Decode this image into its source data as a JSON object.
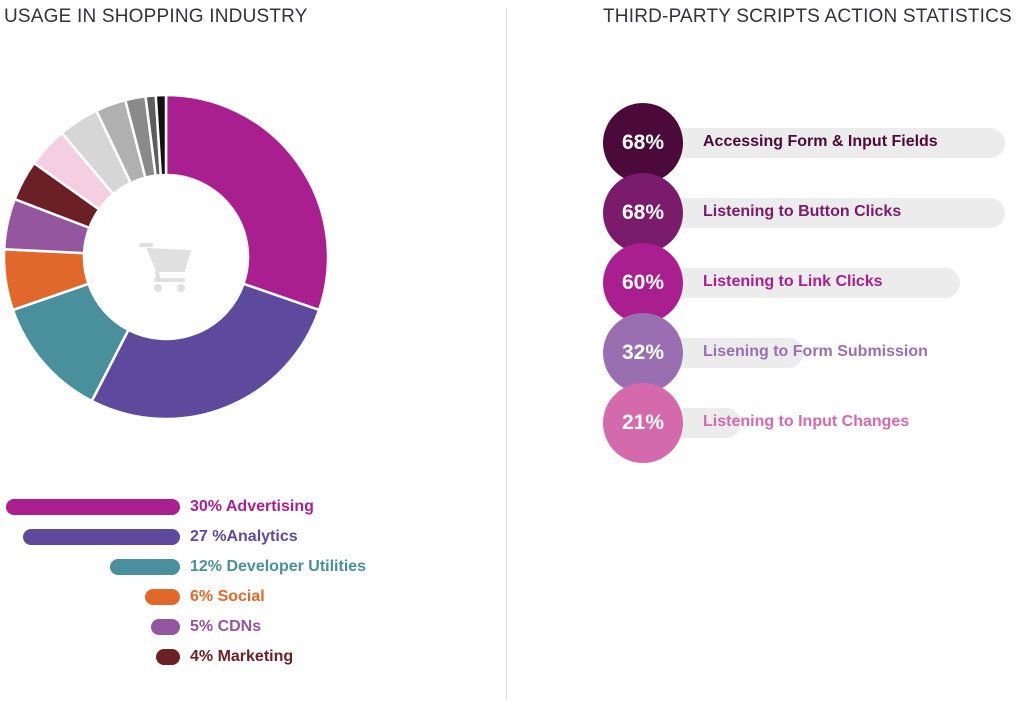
{
  "left_title": "USAGE IN SHOPPING INDUSTRY",
  "right_title": "THIRD-PARTY SCRIPTS ACTION STATISTICS",
  "center_icon": "shopping-cart-icon",
  "chart_data": [
    {
      "type": "pie",
      "style": "donut",
      "title": "USAGE IN SHOPPING INDUSTRY",
      "categories": [
        "Advertising",
        "Analytics",
        "Developer Utilities",
        "Social",
        "CDNs",
        "Marketing",
        "",
        "",
        "",
        "",
        "",
        ""
      ],
      "values": [
        30,
        27,
        12,
        6,
        5,
        4,
        4,
        4,
        3,
        2,
        1,
        1
      ],
      "colors": [
        "#a91f8f",
        "#5e4a9d",
        "#4a8f9c",
        "#e0682a",
        "#93569f",
        "#6b2026",
        "#f4cfe1",
        "#d6d6d6",
        "#b0b0b0",
        "#8a8a8a",
        "#5e5e5e",
        "#111111"
      ],
      "legend": [
        {
          "label": "30% Advertising",
          "value": 30,
          "color": "#a91f8f"
        },
        {
          "label": "27 %Analytics",
          "value": 27,
          "color": "#5e4a9d"
        },
        {
          "label": "12% Developer Utilities",
          "value": 12,
          "color": "#4a8f9c"
        },
        {
          "label": "6% Social",
          "value": 6,
          "color": "#e0682a"
        },
        {
          "label": "5% CDNs",
          "value": 5,
          "color": "#93569f"
        },
        {
          "label": "4% Marketing",
          "value": 4,
          "color": "#6b2026"
        }
      ]
    },
    {
      "type": "bar",
      "orientation": "horizontal",
      "title": "THIRD-PARTY SCRIPTS ACTION STATISTICS",
      "xlim": [
        0,
        68
      ],
      "items": [
        {
          "label": "Accessing Form & Input Fields",
          "value": 68,
          "display": "68%",
          "color": "#4c0a3b"
        },
        {
          "label": "Listening to Button Clicks",
          "value": 68,
          "display": "68%",
          "color": "#7b1b6b"
        },
        {
          "label": "Listening to Link Clicks",
          "value": 60,
          "display": "60%",
          "color": "#a91f8f"
        },
        {
          "label": "Lisening to Form Submission",
          "value": 32,
          "display": "32%",
          "color": "#9a6fb2"
        },
        {
          "label": "Listening to Input Changes",
          "value": 21,
          "display": "21%",
          "color": "#d46aac"
        }
      ]
    }
  ]
}
